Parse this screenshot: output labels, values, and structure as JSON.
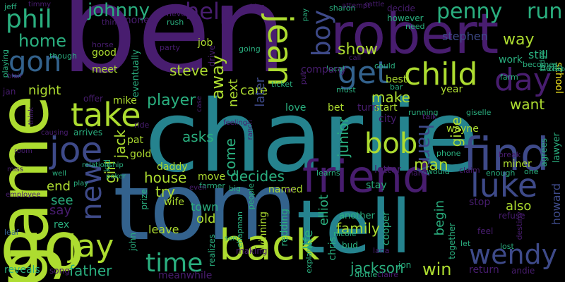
{
  "palette": {
    "purple": "#481d6f",
    "indigo": "#3e4a89",
    "blue": "#33628d",
    "teal": "#25838e",
    "green": "#2aaf7f",
    "lime": "#addc30",
    "yellow": "#f3e51e"
  },
  "words": [
    {
      "text": "ben",
      "color": "purple"
    },
    {
      "text": "charlie",
      "color": "teal"
    },
    {
      "text": "tom",
      "color": "blue"
    },
    {
      "text": "tell",
      "color": "teal"
    },
    {
      "text": "game",
      "color": "lime"
    },
    {
      "text": "go",
      "color": "lime"
    },
    {
      "text": "robert",
      "color": "purple"
    },
    {
      "text": "friend",
      "color": "purple"
    },
    {
      "text": "find",
      "color": "indigo"
    },
    {
      "text": "back",
      "color": "lime"
    },
    {
      "text": "take",
      "color": "lime"
    },
    {
      "text": "joe",
      "color": "indigo"
    },
    {
      "text": "jay",
      "color": "lime"
    },
    {
      "text": "luke",
      "color": "indigo"
    },
    {
      "text": "jean",
      "color": "lime"
    },
    {
      "text": "get",
      "color": "blue"
    },
    {
      "text": "child",
      "color": "lime"
    },
    {
      "text": "day",
      "color": "purple"
    },
    {
      "text": "bob",
      "color": "lime"
    },
    {
      "text": "new",
      "color": "indigo"
    },
    {
      "text": "time",
      "color": "green"
    },
    {
      "text": "wendy",
      "color": "indigo"
    },
    {
      "text": "phil",
      "color": "green"
    },
    {
      "text": "gon",
      "color": "blue"
    },
    {
      "text": "help",
      "color": "purple"
    },
    {
      "text": "penny",
      "color": "green"
    },
    {
      "text": "run",
      "color": "green"
    },
    {
      "text": "boy",
      "color": "indigo"
    },
    {
      "text": "johnny",
      "color": "green"
    },
    {
      "text": "home",
      "color": "green"
    },
    {
      "text": "show",
      "color": "lime"
    },
    {
      "text": "way",
      "color": "lime"
    },
    {
      "text": "harry",
      "color": "indigo"
    },
    {
      "text": "man",
      "color": "lime"
    },
    {
      "text": "away",
      "color": "lime"
    },
    {
      "text": "player",
      "color": "green"
    },
    {
      "text": "house",
      "color": "lime"
    },
    {
      "text": "father",
      "color": "green"
    },
    {
      "text": "win",
      "color": "lime"
    },
    {
      "text": "jackson",
      "color": "green"
    },
    {
      "text": "family",
      "color": "lime"
    },
    {
      "text": "decides",
      "color": "green"
    },
    {
      "text": "junior",
      "color": "green"
    },
    {
      "text": "asks",
      "color": "green"
    },
    {
      "text": "come",
      "color": "green"
    },
    {
      "text": "steve",
      "color": "lime"
    },
    {
      "text": "make",
      "color": "lime"
    },
    {
      "text": "want",
      "color": "lime"
    },
    {
      "text": "give",
      "color": "lime"
    },
    {
      "text": "night",
      "color": "lime"
    },
    {
      "text": "jack",
      "color": "lime"
    },
    {
      "text": "girl",
      "color": "lime"
    },
    {
      "text": "try",
      "color": "lime"
    },
    {
      "text": "end",
      "color": "lime"
    },
    {
      "text": "see",
      "color": "green"
    },
    {
      "text": "say",
      "color": "purple"
    },
    {
      "text": "also",
      "color": "lime"
    },
    {
      "text": "care",
      "color": "lime"
    },
    {
      "text": "next",
      "color": "lime"
    },
    {
      "text": "later",
      "color": "indigo"
    },
    {
      "text": "elliot",
      "color": "green"
    },
    {
      "text": "life",
      "color": "green"
    },
    {
      "text": "begin",
      "color": "green"
    },
    {
      "text": "howard",
      "color": "indigo"
    },
    {
      "text": "stephen",
      "color": "indigo"
    },
    {
      "text": "school",
      "color": "yellow"
    },
    {
      "text": "still",
      "color": "green"
    },
    {
      "text": "bella",
      "color": "green"
    },
    {
      "text": "work",
      "color": "green"
    },
    {
      "text": "love",
      "color": "green"
    },
    {
      "text": "named",
      "color": "lime"
    },
    {
      "text": "bet",
      "color": "lime"
    },
    {
      "text": "start",
      "color": "lime"
    },
    {
      "text": "best",
      "color": "lime"
    },
    {
      "text": "old",
      "color": "lime"
    },
    {
      "text": "town",
      "color": "green"
    },
    {
      "text": "wife",
      "color": "lime"
    },
    {
      "text": "leave",
      "color": "lime"
    },
    {
      "text": "move",
      "color": "lime"
    },
    {
      "text": "daddy",
      "color": "lime"
    },
    {
      "text": "pat",
      "color": "lime"
    },
    {
      "text": "gold",
      "color": "lime"
    },
    {
      "text": "mike",
      "color": "lime"
    },
    {
      "text": "good",
      "color": "lime"
    },
    {
      "text": "meet",
      "color": "lime"
    },
    {
      "text": "money",
      "color": "purple"
    },
    {
      "text": "job",
      "color": "lime"
    },
    {
      "text": "drive",
      "color": "purple"
    },
    {
      "text": "eventually",
      "color": "green"
    },
    {
      "text": "chris",
      "color": "green"
    },
    {
      "text": "redding",
      "color": "green"
    },
    {
      "text": "winning",
      "color": "lime"
    },
    {
      "text": "year",
      "color": "lime"
    },
    {
      "text": "wayne",
      "color": "lime"
    },
    {
      "text": "miner",
      "color": "lime"
    },
    {
      "text": "city",
      "color": "purple"
    },
    {
      "text": "turn",
      "color": "purple"
    },
    {
      "text": "letter",
      "color": "purple"
    },
    {
      "text": "another",
      "color": "green"
    },
    {
      "text": "stay",
      "color": "green"
    },
    {
      "text": "cooper",
      "color": "green"
    },
    {
      "text": "rex",
      "color": "green"
    },
    {
      "text": "reveals",
      "color": "green"
    },
    {
      "text": "song",
      "color": "purple"
    },
    {
      "text": "meanwhile",
      "color": "purple"
    },
    {
      "text": "return",
      "color": "purple"
    },
    {
      "text": "andie",
      "color": "purple"
    },
    {
      "text": "lost",
      "color": "green"
    },
    {
      "text": "feel",
      "color": "purple"
    },
    {
      "text": "stop",
      "color": "purple"
    },
    {
      "text": "refuse",
      "color": "purple"
    },
    {
      "text": "lawyer",
      "color": "green"
    },
    {
      "text": "agrees",
      "color": "green"
    },
    {
      "text": "keep",
      "color": "green"
    },
    {
      "text": "jeff",
      "color": "green"
    },
    {
      "text": "playing",
      "color": "green"
    },
    {
      "text": "jan",
      "color": "purple"
    },
    {
      "text": "offer",
      "color": "purple"
    },
    {
      "text": "arrives",
      "color": "green"
    },
    {
      "text": "kid",
      "color": "green"
    },
    {
      "text": "play",
      "color": "green"
    },
    {
      "text": "poker",
      "color": "green"
    },
    {
      "text": "leaf",
      "color": "blue"
    },
    {
      "text": "john",
      "color": "green"
    },
    {
      "text": "prize",
      "color": "green"
    },
    {
      "text": "realizes",
      "color": "green"
    },
    {
      "text": "making",
      "color": "purple"
    },
    {
      "text": "chapman",
      "color": "green"
    },
    {
      "text": "farmer",
      "color": "green"
    },
    {
      "text": "big",
      "color": "green"
    },
    {
      "text": "bud",
      "color": "green"
    },
    {
      "text": "nicole",
      "color": "green"
    },
    {
      "text": "explains",
      "color": "green"
    },
    {
      "text": "dottie",
      "color": "green"
    },
    {
      "text": "claire",
      "color": "purple"
    },
    {
      "text": "jon",
      "color": "green"
    },
    {
      "text": "lana",
      "color": "purple"
    },
    {
      "text": "together",
      "color": "green"
    },
    {
      "text": "let",
      "color": "green"
    },
    {
      "text": "phone",
      "color": "green"
    },
    {
      "text": "would",
      "color": "green"
    },
    {
      "text": "hand",
      "color": "purple"
    },
    {
      "text": "claim",
      "color": "purple"
    },
    {
      "text": "enough",
      "color": "green"
    },
    {
      "text": "one",
      "color": "green"
    },
    {
      "text": "destiny",
      "color": "purple"
    },
    {
      "text": "break",
      "color": "purple"
    },
    {
      "text": "mr",
      "color": "purple"
    },
    {
      "text": "people",
      "color": "green"
    },
    {
      "text": "learns",
      "color": "green"
    },
    {
      "text": "ticket",
      "color": "green"
    },
    {
      "text": "must",
      "color": "green"
    },
    {
      "text": "put",
      "color": "purple"
    },
    {
      "text": "bar",
      "color": "green"
    },
    {
      "text": "running",
      "color": "green"
    },
    {
      "text": "giselle",
      "color": "green"
    },
    {
      "text": "talk",
      "color": "purple"
    },
    {
      "text": "ride",
      "color": "purple"
    },
    {
      "text": "local",
      "color": "green"
    },
    {
      "text": "call",
      "color": "purple"
    },
    {
      "text": "could",
      "color": "green"
    },
    {
      "text": "going",
      "color": "green"
    },
    {
      "text": "party",
      "color": "purple"
    },
    {
      "text": "horse",
      "color": "purple"
    },
    {
      "text": "though",
      "color": "green"
    },
    {
      "text": "thing",
      "color": "purple"
    },
    {
      "text": "rush",
      "color": "green"
    },
    {
      "text": "never",
      "color": "purple"
    },
    {
      "text": "kiss",
      "color": "purple"
    },
    {
      "text": "sharon",
      "color": "green"
    },
    {
      "text": "pay",
      "color": "green"
    },
    {
      "text": "attempt",
      "color": "purple"
    },
    {
      "text": "cattle",
      "color": "purple"
    },
    {
      "text": "decide",
      "color": "purple"
    },
    {
      "text": "however",
      "color": "green"
    },
    {
      "text": "need",
      "color": "green"
    },
    {
      "text": "farm",
      "color": "green"
    },
    {
      "text": "becomes",
      "color": "green"
    },
    {
      "text": "judge",
      "color": "green"
    },
    {
      "text": "timmy",
      "color": "purple"
    },
    {
      "text": "blair",
      "color": "purple"
    },
    {
      "text": "think",
      "color": "purple"
    },
    {
      "text": "causing",
      "color": "purple"
    },
    {
      "text": "room",
      "color": "purple"
    },
    {
      "text": "miss",
      "color": "purple"
    },
    {
      "text": "employee",
      "color": "purple"
    },
    {
      "text": "relationship",
      "color": "green"
    },
    {
      "text": "well",
      "color": "green"
    },
    {
      "text": "even",
      "color": "purple"
    },
    {
      "text": "case",
      "color": "purple"
    },
    {
      "text": "feeling",
      "color": "purple"
    },
    {
      "text": "ranch",
      "color": "purple"
    },
    {
      "text": "company",
      "color": "purple"
    },
    {
      "text": "son",
      "color": "green"
    },
    {
      "text": "j",
      "color": "purple"
    }
  ]
}
